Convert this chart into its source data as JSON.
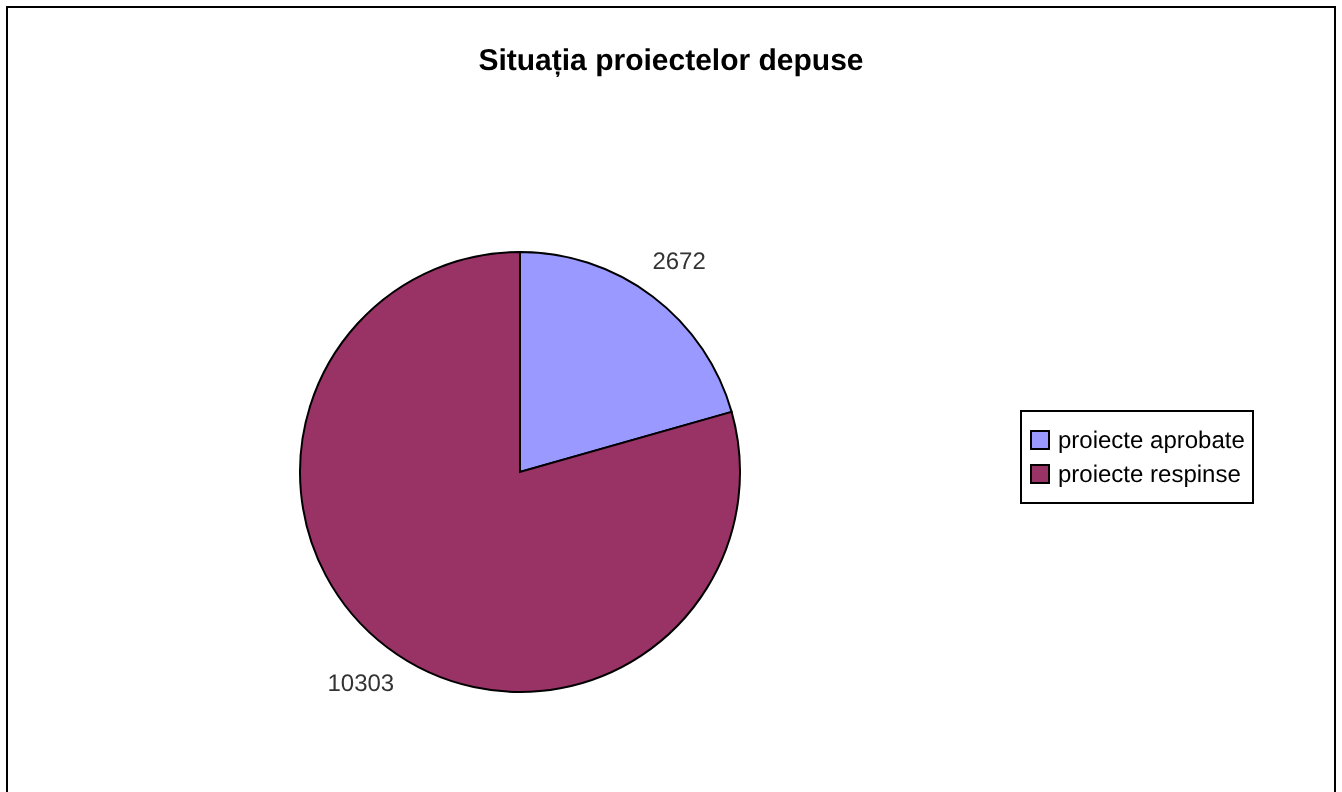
{
  "chart_data": {
    "type": "pie",
    "title": "Situația proiectelor depuse",
    "categories": [
      "proiecte aprobate",
      "proiecte respinse"
    ],
    "values": [
      2672,
      10303
    ],
    "colors": [
      "#9999ff",
      "#993366"
    ],
    "data_labels": true,
    "legend": "right"
  }
}
